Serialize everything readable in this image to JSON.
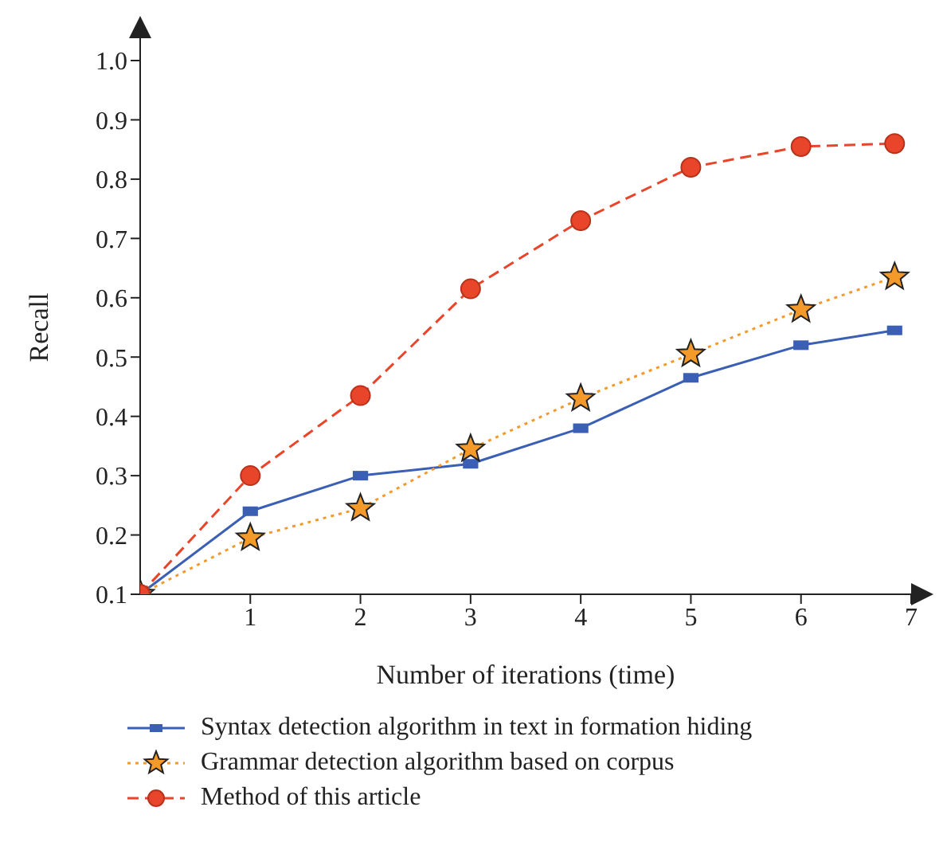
{
  "chart_data": {
    "type": "line",
    "xlabel": "Number of iterations (time)",
    "ylabel": "Recall",
    "x": [
      0,
      1,
      2,
      3,
      4,
      5,
      6,
      6.85
    ],
    "xlim": [
      0,
      7
    ],
    "xticks": [
      1,
      2,
      3,
      4,
      5,
      6,
      7
    ],
    "ylim": [
      0.1,
      1.0
    ],
    "yticks": [
      0.1,
      0.2,
      0.3,
      0.4,
      0.5,
      0.6,
      0.7,
      0.8,
      0.9,
      {
        "value": 1,
        "label": "1.0"
      }
    ],
    "grid": false,
    "legend": "bottom",
    "series": [
      {
        "name": "Syntax detection algorithm in text in formation hiding",
        "color": "#3a5fb5",
        "marker": "square",
        "line_style": "solid",
        "values": [
          0.1,
          0.24,
          0.3,
          0.32,
          0.38,
          0.465,
          0.52,
          0.545
        ]
      },
      {
        "name": "Grammar detection algorithm based on corpus",
        "color": "#f39a2a",
        "marker": "star",
        "line_style": "dotted",
        "values": [
          0.1,
          0.195,
          0.245,
          0.345,
          0.43,
          0.505,
          0.58,
          0.635
        ]
      },
      {
        "name": "Method of this article",
        "color": "#e8452a",
        "marker": "circle",
        "line_style": "dashed",
        "values": [
          0.1,
          0.3,
          0.435,
          0.615,
          0.73,
          0.82,
          0.855,
          0.86
        ]
      }
    ]
  }
}
